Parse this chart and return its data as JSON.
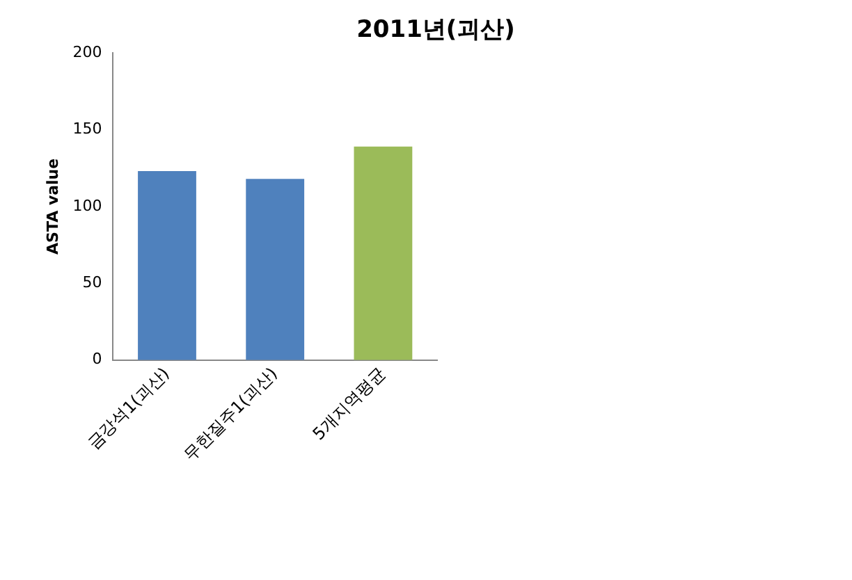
{
  "chart_data": {
    "type": "bar",
    "title": "2011년(괴산)",
    "ylabel": "ASTA value",
    "categories": [
      "금강석1(괴산)",
      "무한질주1(괴산)",
      "5개지역평균"
    ],
    "values": [
      123,
      118,
      139
    ],
    "colors": [
      "#4f81bd",
      "#4f81bd",
      "#9bbb59"
    ],
    "ylim": [
      0,
      200
    ],
    "yticks": [
      0,
      50,
      100,
      150,
      200
    ],
    "grid": false,
    "legend": false
  }
}
